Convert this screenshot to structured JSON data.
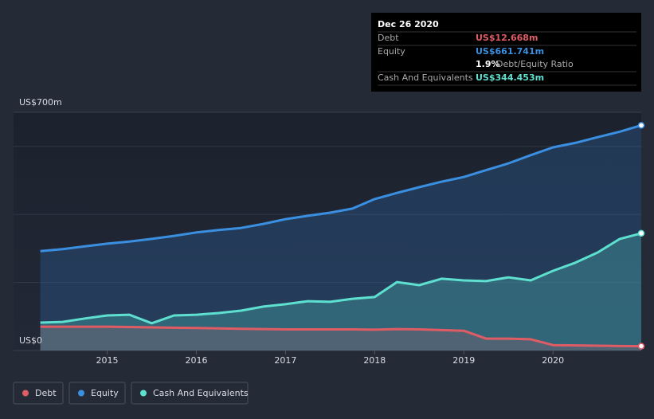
{
  "chart_data": {
    "type": "line",
    "x": [
      2014.25,
      2014.5,
      2014.75,
      2015,
      2015.25,
      2015.5,
      2015.75,
      2016,
      2016.25,
      2016.5,
      2016.75,
      2017,
      2017.25,
      2017.5,
      2017.75,
      2018,
      2018.25,
      2018.5,
      2018.75,
      2019,
      2019.25,
      2019.5,
      2019.75,
      2020,
      2020.25,
      2020.5,
      2020.75,
      2020.99
    ],
    "series": [
      {
        "name": "Debt",
        "color": "#e05c64",
        "values": [
          70,
          70,
          70,
          70,
          69,
          68,
          67,
          66,
          65,
          64,
          63,
          62,
          62,
          62,
          62,
          61,
          63,
          62,
          60,
          58,
          35,
          35,
          33,
          16,
          15,
          14,
          13,
          12.668
        ]
      },
      {
        "name": "Equity",
        "color": "#3a8fe0",
        "values": [
          292,
          298,
          306,
          314,
          320,
          328,
          337,
          347,
          354,
          360,
          372,
          386,
          396,
          405,
          417,
          445,
          463,
          480,
          496,
          510,
          530,
          550,
          574,
          597,
          610,
          627,
          643,
          661.741
        ]
      },
      {
        "name": "Cash And Equivalents",
        "color": "#5ee0d0",
        "values": [
          82,
          84,
          94,
          103,
          105,
          80,
          103,
          105,
          110,
          117,
          129,
          136,
          145,
          143,
          152,
          157,
          201,
          192,
          211,
          206,
          204,
          215,
          206,
          234,
          258,
          288,
          328,
          344.453
        ]
      }
    ],
    "xlim": [
      2013.95,
      2020.99
    ],
    "xticks": [
      2015,
      2016,
      2017,
      2018,
      2019,
      2020
    ],
    "ylim": [
      0,
      700
    ],
    "yticks": [
      {
        "value": 0,
        "label": "US$0"
      },
      {
        "value": 700,
        "label": "US$700m"
      }
    ],
    "ygrid": [
      200,
      400,
      600
    ],
    "tooltip": {
      "date": "Dec 26 2020",
      "rows": [
        {
          "label": "Debt",
          "value": "US$12.668m"
        },
        {
          "label": "Equity",
          "value": "US$661.741m"
        },
        {
          "label": "Cash And Equivalents",
          "value": "US$344.453m"
        }
      ],
      "ratio": "1.9%",
      "ratio_label": "Debt/Equity Ratio"
    }
  }
}
